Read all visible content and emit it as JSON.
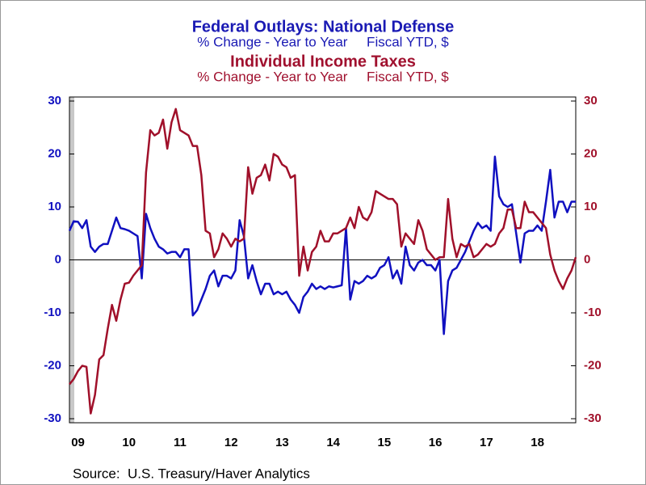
{
  "chart_data": {
    "type": "line",
    "source": "Source:  U.S. Treasury/Haver Analytics",
    "categories": [
      null,
      null,
      "09",
      null,
      null,
      null,
      null,
      null,
      null,
      null,
      null,
      null,
      null,
      null,
      "10",
      null,
      null,
      null,
      null,
      null,
      null,
      null,
      null,
      null,
      null,
      null,
      "11",
      null,
      null,
      null,
      null,
      null,
      null,
      null,
      null,
      null,
      null,
      null,
      "12",
      null,
      null,
      null,
      null,
      null,
      null,
      null,
      null,
      null,
      null,
      null,
      "13",
      null,
      null,
      null,
      null,
      null,
      null,
      null,
      null,
      null,
      null,
      null,
      "14",
      null,
      null,
      null,
      null,
      null,
      null,
      null,
      null,
      null,
      null,
      null,
      "15",
      null,
      null,
      null,
      null,
      null,
      null,
      null,
      null,
      null,
      null,
      null,
      "16",
      null,
      null,
      null,
      null,
      null,
      null,
      null,
      null,
      null,
      null,
      null,
      "17",
      null,
      null,
      null,
      null,
      null,
      null,
      null,
      null,
      null,
      null,
      null,
      "18",
      null,
      null,
      null,
      null,
      null,
      null,
      null,
      null,
      null
    ],
    "ylim": [
      -30,
      30
    ],
    "yticks": [
      -30,
      -20,
      -10,
      0,
      10,
      20,
      30
    ],
    "y2lim": [
      -30,
      30
    ],
    "y2ticks": [
      -30,
      -20,
      -10,
      0,
      10,
      20,
      30
    ],
    "series": [
      {
        "name": "Federal Outlays: National Defense",
        "units": "% Change - Year to Year     Fiscal YTD, $",
        "color": "#1010c0",
        "values": [
          5.5,
          7.3,
          7.2,
          6,
          7.5,
          2.5,
          1.5,
          2.5,
          3,
          3,
          5.5,
          8,
          6,
          5.8,
          5.5,
          5,
          4.5,
          -3.5,
          8.7,
          6,
          4,
          2.5,
          2,
          1.2,
          1.5,
          1.5,
          0.5,
          2,
          2,
          -10.5,
          -9.5,
          -7.5,
          -5.5,
          -3,
          -2,
          -5,
          -3,
          -3,
          -3.5,
          -2,
          7.5,
          4.5,
          -3.5,
          -1,
          -4,
          -6.5,
          -4.5,
          -4.5,
          -6.5,
          -6,
          -6.5,
          -6,
          -7.5,
          -8.5,
          -10,
          -7,
          -6,
          -4.5,
          -5.5,
          -5,
          -5.5,
          -5,
          -5.2,
          -5,
          -4.8,
          6,
          -7.5,
          -4,
          -4.5,
          -4,
          -3,
          -3.5,
          -3,
          -1.5,
          -1,
          0.5,
          -3.5,
          -2,
          -4.5,
          2.5,
          -1,
          -2,
          -0.5,
          0,
          -1,
          -1,
          -2,
          0,
          -14,
          -4,
          -2,
          -1.5,
          0,
          1.5,
          3.5,
          5.5,
          7,
          6,
          6.5,
          5.5,
          19.5,
          12,
          10.5,
          10,
          10.5,
          5,
          -0.5,
          5,
          5.5,
          5.5,
          6.5,
          5.5,
          11,
          17,
          8,
          11,
          11,
          9,
          11,
          11
        ]
      },
      {
        "name": "Individual Income Taxes",
        "units": "% Change - Year to Year     Fiscal YTD, $",
        "color": "#a0102a",
        "axis": "y2",
        "values": [
          -23.5,
          -22.5,
          -21,
          -20,
          -20.2,
          -29,
          -25.5,
          -18.8,
          -18,
          -13,
          -8.5,
          -11.5,
          -7.5,
          -4.5,
          -4.3,
          -3,
          -2,
          -1,
          16.5,
          24.5,
          23.5,
          24,
          26.5,
          21,
          26,
          28.5,
          24.5,
          24,
          23.5,
          21.5,
          21.5,
          16,
          5.5,
          5,
          0.5,
          2,
          5,
          4,
          2.5,
          4,
          3.5,
          4,
          17.5,
          12.5,
          15.5,
          16,
          18,
          15,
          20,
          19.5,
          18,
          17.5,
          15.5,
          16,
          -3,
          2.5,
          -2,
          1.5,
          2.5,
          5.5,
          3.5,
          3.5,
          5,
          5,
          5.5,
          6,
          8,
          6,
          10,
          8,
          7.5,
          9,
          13,
          12.5,
          12,
          11.5,
          11.5,
          10.5,
          2.5,
          5,
          4,
          3,
          7.5,
          5.5,
          2,
          1,
          0,
          0.5,
          0.5,
          11.5,
          4,
          0.5,
          3,
          2.5,
          3,
          0.5,
          1,
          2,
          3,
          2.5,
          3,
          5,
          6,
          9.5,
          9.5,
          6,
          6,
          11,
          9,
          9,
          8,
          7,
          6,
          1,
          -2,
          -4,
          -5.5,
          -3.5,
          -2,
          0.5
        ]
      }
    ]
  }
}
